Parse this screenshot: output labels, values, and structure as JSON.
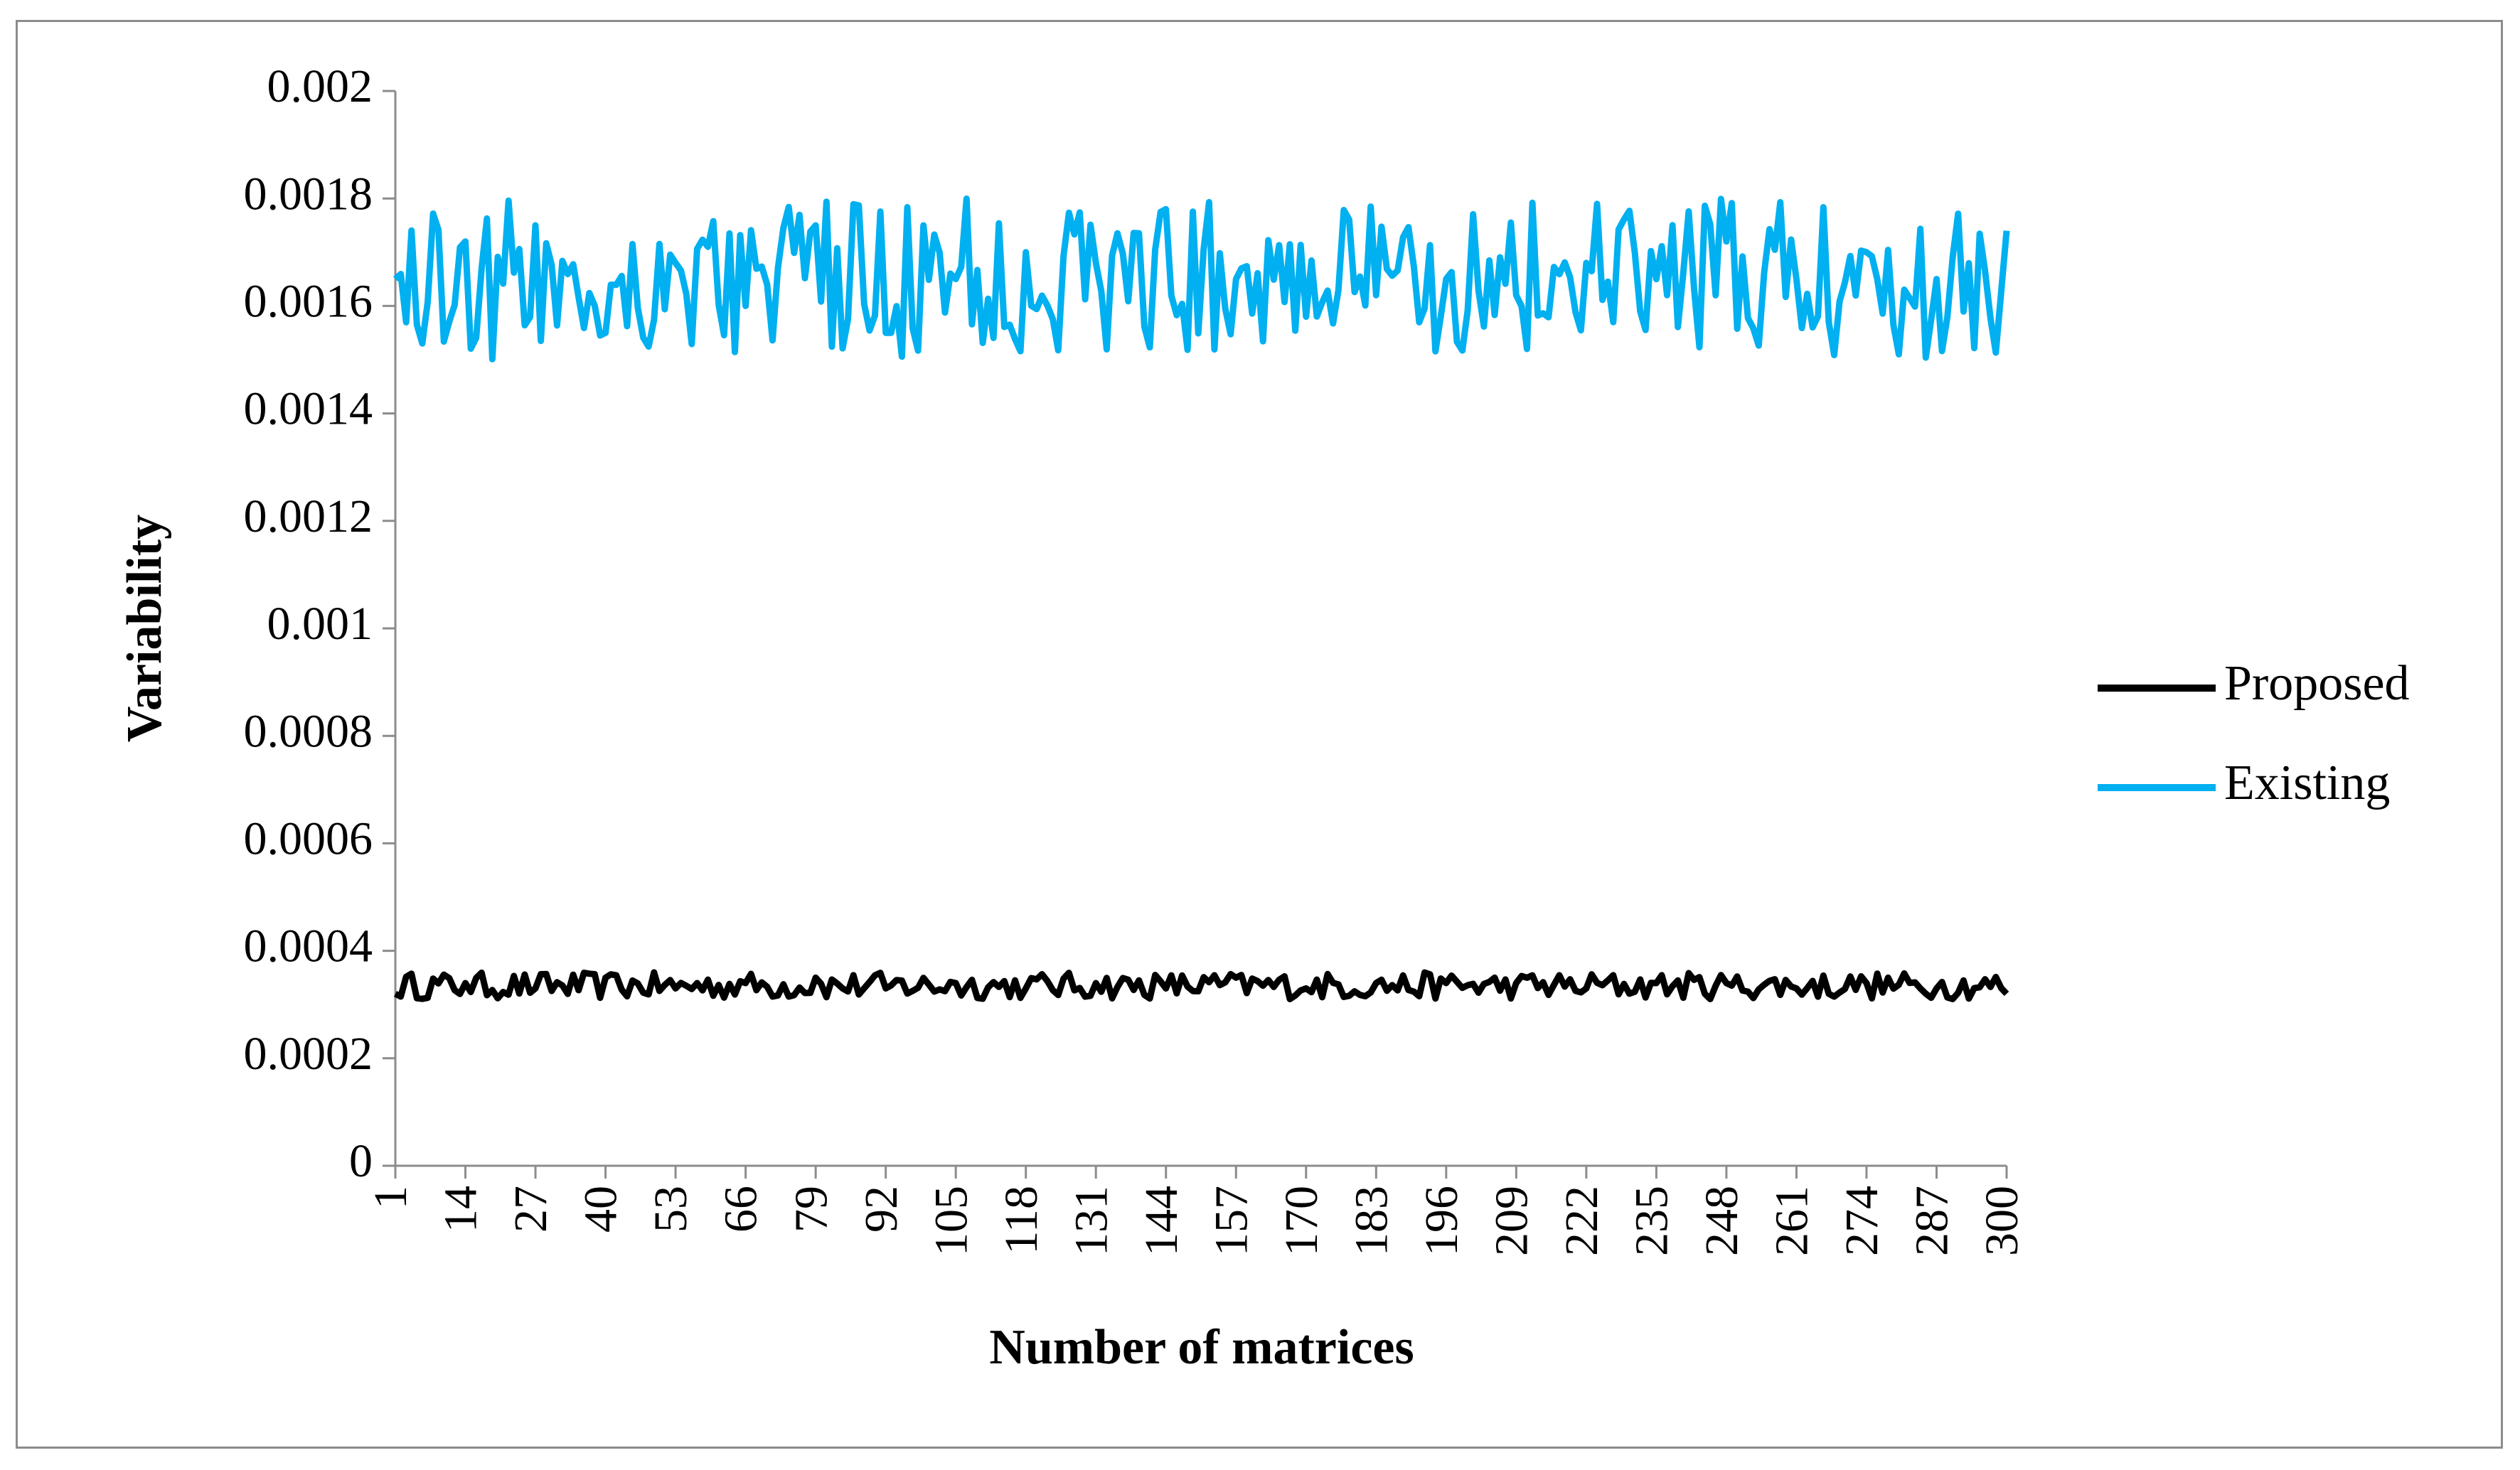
{
  "chart_data": {
    "type": "line",
    "title": "",
    "xlabel": "Number of matrices",
    "ylabel": "Variability",
    "ylim": [
      0,
      0.002
    ],
    "y_ticks": [
      "0",
      "0.0002",
      "0.0004",
      "0.0006",
      "0.0008",
      "0.001",
      "0.0012",
      "0.0014",
      "0.0016",
      "0.0018",
      "0.002"
    ],
    "x_range": [
      1,
      300
    ],
    "x_tick_step": 13,
    "x_ticks": [
      "1",
      "14",
      "27",
      "40",
      "53",
      "66",
      "79",
      "92",
      "105",
      "118",
      "131",
      "144",
      "157",
      "170",
      "183",
      "196",
      "209",
      "222",
      "235",
      "248",
      "261",
      "274",
      "287",
      "300"
    ],
    "grid": false,
    "legend_position": "right",
    "series": [
      {
        "name": "Proposed",
        "color": "#000000",
        "approx_range": [
          0.00031,
          0.00036
        ],
        "values_by_x": [
          {
            "x": 1,
            "y": 0.00032
          },
          {
            "x": 14,
            "y": 0.00034
          },
          {
            "x": 27,
            "y": 0.00033
          },
          {
            "x": 40,
            "y": 0.00035
          },
          {
            "x": 53,
            "y": 0.00033
          },
          {
            "x": 66,
            "y": 0.00034
          },
          {
            "x": 79,
            "y": 0.00035
          },
          {
            "x": 92,
            "y": 0.00033
          },
          {
            "x": 105,
            "y": 0.00034
          },
          {
            "x": 118,
            "y": 0.00033
          },
          {
            "x": 131,
            "y": 0.00034
          },
          {
            "x": 144,
            "y": 0.00033
          },
          {
            "x": 157,
            "y": 0.00035
          },
          {
            "x": 170,
            "y": 0.00033
          },
          {
            "x": 183,
            "y": 0.00034
          },
          {
            "x": 196,
            "y": 0.00034
          },
          {
            "x": 209,
            "y": 0.00034
          },
          {
            "x": 222,
            "y": 0.00033
          },
          {
            "x": 235,
            "y": 0.00034
          },
          {
            "x": 248,
            "y": 0.00034
          },
          {
            "x": 261,
            "y": 0.00033
          },
          {
            "x": 274,
            "y": 0.00034
          },
          {
            "x": 287,
            "y": 0.00033
          },
          {
            "x": 300,
            "y": 0.00032
          }
        ]
      },
      {
        "name": "Existing",
        "color": "#00b0f0",
        "approx_range": [
          0.0015,
          0.0018
        ],
        "values_by_x": [
          {
            "x": 1,
            "y": 0.00165
          },
          {
            "x": 14,
            "y": 0.00172
          },
          {
            "x": 27,
            "y": 0.00175
          },
          {
            "x": 40,
            "y": 0.00155
          },
          {
            "x": 53,
            "y": 0.00168
          },
          {
            "x": 66,
            "y": 0.0016
          },
          {
            "x": 79,
            "y": 0.00175
          },
          {
            "x": 92,
            "y": 0.00155
          },
          {
            "x": 105,
            "y": 0.00165
          },
          {
            "x": 118,
            "y": 0.0017
          },
          {
            "x": 131,
            "y": 0.00168
          },
          {
            "x": 144,
            "y": 0.00178
          },
          {
            "x": 157,
            "y": 0.00165
          },
          {
            "x": 170,
            "y": 0.00158
          },
          {
            "x": 183,
            "y": 0.00162
          },
          {
            "x": 196,
            "y": 0.00165
          },
          {
            "x": 209,
            "y": 0.00162
          },
          {
            "x": 222,
            "y": 0.00168
          },
          {
            "x": 235,
            "y": 0.00165
          },
          {
            "x": 248,
            "y": 0.00172
          },
          {
            "x": 261,
            "y": 0.00165
          },
          {
            "x": 274,
            "y": 0.0017
          },
          {
            "x": 287,
            "y": 0.00165
          },
          {
            "x": 300,
            "y": 0.00174
          }
        ]
      }
    ]
  }
}
